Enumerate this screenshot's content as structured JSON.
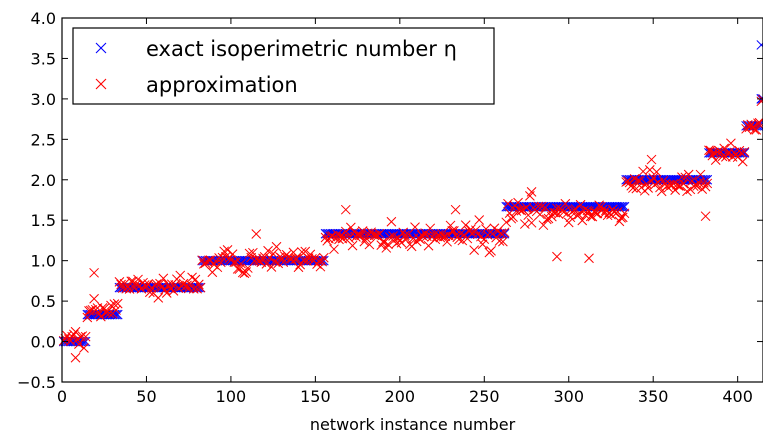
{
  "chart_data": {
    "type": "scatter",
    "xlabel": "network instance number",
    "ylabel": "",
    "xlim": [
      0,
      415
    ],
    "ylim": [
      -0.5,
      4.0
    ],
    "x_ticks": [
      0,
      50,
      100,
      150,
      200,
      250,
      300,
      350,
      400
    ],
    "y_ticks": [
      -0.5,
      0.0,
      0.5,
      1.0,
      1.5,
      2.0,
      2.5,
      3.0,
      3.5,
      4.0
    ],
    "x_tick_labels": [
      "0",
      "50",
      "100",
      "150",
      "200",
      "250",
      "300",
      "350",
      "400"
    ],
    "y_tick_labels": [
      "−0.5",
      "0.0",
      "0.5",
      "1.0",
      "1.5",
      "2.0",
      "2.5",
      "3.0",
      "3.5",
      "4.0"
    ],
    "legend_position": "top-left",
    "grid": false,
    "marker": "x",
    "series": [
      {
        "name": "exact isoperimetric number η",
        "color": "#0000ff",
        "segments": [
          {
            "x_start": 1,
            "x_end": 14,
            "y": 0.0
          },
          {
            "x_start": 15,
            "x_end": 33,
            "y": 0.333
          },
          {
            "x_start": 34,
            "x_end": 82,
            "y": 0.667
          },
          {
            "x_start": 83,
            "x_end": 155,
            "y": 1.0
          },
          {
            "x_start": 156,
            "x_end": 262,
            "y": 1.333
          },
          {
            "x_start": 263,
            "x_end": 333,
            "y": 1.667
          },
          {
            "x_start": 334,
            "x_end": 382,
            "y": 2.0
          },
          {
            "x_start": 383,
            "x_end": 404,
            "y": 2.333
          },
          {
            "x_start": 405,
            "x_end": 413,
            "y": 2.667
          },
          {
            "x_start": 414,
            "x_end": 415,
            "y": 3.0
          }
        ],
        "extra_points": [
          [
            414,
            3.667
          ],
          [
            414,
            3.0
          ]
        ]
      },
      {
        "name": "approximation",
        "color": "#ff0000",
        "segments": [
          {
            "x_start": 1,
            "x_end": 14,
            "y_mid": 0.05,
            "spread": 0.45
          },
          {
            "x_start": 15,
            "x_end": 33,
            "y_mid": 0.4,
            "spread": 0.35
          },
          {
            "x_start": 34,
            "x_end": 82,
            "y_mid": 0.68,
            "spread": 0.4
          },
          {
            "x_start": 83,
            "x_end": 155,
            "y_mid": 1.0,
            "spread": 0.4
          },
          {
            "x_start": 156,
            "x_end": 262,
            "y_mid": 1.3,
            "spread": 0.45
          },
          {
            "x_start": 263,
            "x_end": 333,
            "y_mid": 1.6,
            "spread": 0.45
          },
          {
            "x_start": 334,
            "x_end": 382,
            "y_mid": 1.95,
            "spread": 0.4
          },
          {
            "x_start": 383,
            "x_end": 404,
            "y_mid": 2.33,
            "spread": 0.35
          },
          {
            "x_start": 405,
            "x_end": 413,
            "y_mid": 2.65,
            "spread": 0.2
          },
          {
            "x_start": 414,
            "x_end": 415,
            "y_mid": 2.95,
            "spread": 0.2
          }
        ],
        "outliers": [
          [
            8,
            -0.2
          ],
          [
            19,
            0.85
          ],
          [
            115,
            1.33
          ],
          [
            168,
            1.63
          ],
          [
            233,
            1.63
          ],
          [
            278,
            1.85
          ],
          [
            293,
            1.05
          ],
          [
            312,
            1.03
          ],
          [
            349,
            2.25
          ],
          [
            381,
            1.55
          ]
        ]
      }
    ]
  }
}
